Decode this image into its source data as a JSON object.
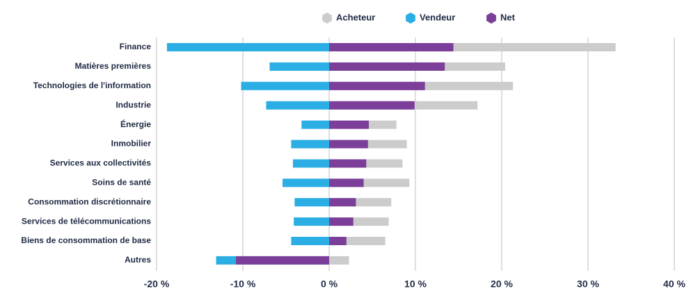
{
  "chart_data": {
    "type": "bar",
    "orientation": "horizontal",
    "overlay": true,
    "categories": [
      "Finance",
      "Matières premières",
      "Technologies de l'information",
      "Industrie",
      "Énergie",
      "Inmobilier",
      "Services aux collectivités",
      "Soins de santé",
      "Consommation discrétionnaire",
      "Services de télécommunications",
      "Biens de consommation de base",
      "Autres"
    ],
    "series": [
      {
        "name": "Acheteur",
        "color": "#cccccc",
        "values": [
          33.2,
          20.4,
          21.3,
          17.2,
          7.8,
          9.0,
          8.5,
          9.3,
          7.2,
          6.9,
          6.5,
          2.3
        ]
      },
      {
        "name": "Vendeur",
        "color": "#2aaee3",
        "values": [
          -18.8,
          -6.9,
          -10.2,
          -7.3,
          -3.2,
          -4.4,
          -4.2,
          -5.4,
          -4.0,
          -4.1,
          -4.4,
          -13.1
        ]
      },
      {
        "name": "Net",
        "color": "#7b3f9a",
        "values": [
          14.4,
          13.4,
          11.1,
          9.9,
          4.6,
          4.5,
          4.3,
          4.0,
          3.1,
          2.8,
          2.0,
          -10.8
        ]
      }
    ],
    "xlim": [
      -20,
      40
    ],
    "xticks": [
      {
        "value": -20,
        "label": "-20 %"
      },
      {
        "value": -10,
        "label": "-10 %"
      },
      {
        "value": 0,
        "label": "0 %"
      },
      {
        "value": 10,
        "label": "10 %"
      },
      {
        "value": 20,
        "label": "20 %"
      },
      {
        "value": 30,
        "label": "30 %"
      },
      {
        "value": 40,
        "label": "40 %"
      }
    ],
    "grid": true,
    "legend": "top"
  }
}
